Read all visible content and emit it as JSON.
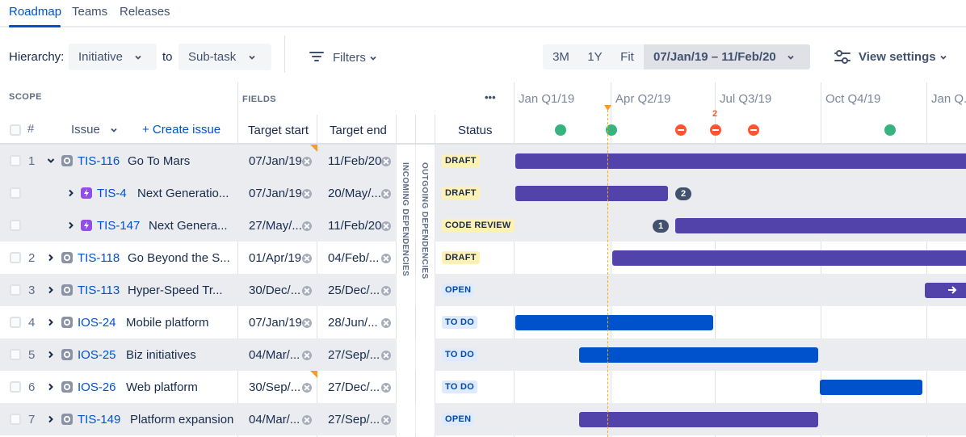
{
  "tabs": [
    {
      "label": "Roadmap",
      "active": true
    },
    {
      "label": "Teams",
      "active": false
    },
    {
      "label": "Releases",
      "active": false
    }
  ],
  "toolbar": {
    "hierarchy_label": "Hierarchy:",
    "hierarchy_from": "Initiative",
    "to_label": "to",
    "hierarchy_to": "Sub-task",
    "filters_label": "Filters",
    "range_buttons": [
      "3M",
      "1Y",
      "Fit"
    ],
    "date_range": "07/Jan/19 – 11/Feb/20",
    "view_settings_label": "View settings"
  },
  "table_header": {
    "scope_label": "SCOPE",
    "fields_label": "FIELDS",
    "more_label": "•••",
    "num_label": "#",
    "issue_label": "Issue",
    "create_issue_label": "+ Create issue",
    "target_start_label": "Target start",
    "target_end_label": "Target end",
    "status_label": "Status",
    "incoming_label": "INCOMING DEPENDENCIES",
    "outgoing_label": "OUTGOING DEPENDENCIES"
  },
  "timeline": {
    "quarters": [
      "Jan Q1/19",
      "Apr Q2/19",
      "Jul Q3/19",
      "Oct Q4/19",
      "Jan Q..."
    ],
    "marker_count": "2",
    "milestones": [
      {
        "kind": "done",
        "color": "#36B37E"
      },
      {
        "kind": "done",
        "color": "#36B37E"
      },
      {
        "kind": "blocked",
        "color": "#FF5630"
      },
      {
        "kind": "blocked",
        "color": "#FF5630"
      },
      {
        "kind": "blocked",
        "color": "#FF5630"
      },
      {
        "kind": "done",
        "color": "#36B37E"
      }
    ]
  },
  "rows": [
    {
      "num": "1",
      "key": "TIS-116",
      "summary": "Go To Mars",
      "start": "07/Jan/19",
      "end": "11/Feb/20",
      "status": "DRAFT",
      "expanded": true,
      "child": false,
      "icon": "initiative-icon",
      "bar_color": "#5243AA"
    },
    {
      "num": "",
      "key": "TIS-4",
      "summary": "Next Generatio...",
      "start": "07/Jan/19",
      "end": "20/May/...",
      "status": "DRAFT",
      "expanded": false,
      "child": true,
      "icon": "epic-icon",
      "bar_color": "#5243AA",
      "badge": "2"
    },
    {
      "num": "",
      "key": "TIS-147",
      "summary": "Next Genera...",
      "start": "27/May/...",
      "end": "11/Feb/20",
      "status": "CODE REVIEW",
      "expanded": false,
      "child": true,
      "icon": "epic-icon",
      "bar_color": "#5243AA",
      "badge": "1"
    },
    {
      "num": "2",
      "key": "TIS-118",
      "summary": "Go Beyond the S...",
      "start": "01/Apr/19",
      "end": "04/Feb/...",
      "status": "DRAFT",
      "expanded": false,
      "child": false,
      "icon": "initiative-icon",
      "bar_color": "#5243AA"
    },
    {
      "num": "3",
      "key": "TIS-113",
      "summary": "Hyper-Speed Tr...",
      "start": "30/Dec/...",
      "end": "25/Dec/...",
      "status": "OPEN",
      "expanded": false,
      "child": false,
      "icon": "initiative-icon",
      "bar_color": "#5243AA"
    },
    {
      "num": "4",
      "key": "IOS-24",
      "summary": "Mobile platform",
      "start": "07/Jan/19",
      "end": "28/Jun/...",
      "status": "TO DO",
      "expanded": false,
      "child": false,
      "icon": "initiative-icon",
      "bar_color": "#0052CC"
    },
    {
      "num": "5",
      "key": "IOS-25",
      "summary": "Biz initiatives",
      "start": "04/Mar/...",
      "end": "27/Sep/...",
      "status": "TO DO",
      "expanded": false,
      "child": false,
      "icon": "initiative-icon",
      "bar_color": "#0052CC"
    },
    {
      "num": "6",
      "key": "IOS-26",
      "summary": "Web platform",
      "start": "30/Sep/...",
      "end": "27/Dec/...",
      "status": "TO DO",
      "expanded": false,
      "child": false,
      "icon": "initiative-icon",
      "bar_color": "#0052CC"
    },
    {
      "num": "7",
      "key": "TIS-149",
      "summary": "Platform expansion",
      "start": "04/Mar/...",
      "end": "27/Sep/...",
      "status": "OPEN",
      "expanded": false,
      "child": false,
      "icon": "initiative-icon",
      "bar_color": "#5243AA"
    }
  ]
}
